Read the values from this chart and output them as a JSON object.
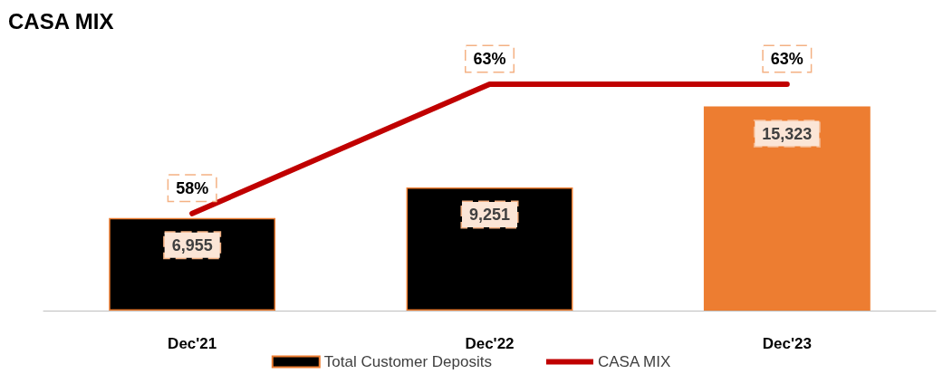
{
  "chart_data": {
    "type": "bar",
    "title": "CASA MIX",
    "categories": [
      "Dec'21",
      "Dec'22",
      "Dec'23"
    ],
    "series": [
      {
        "name": "Total Customer Deposits",
        "color": "#000000",
        "colors": [
          "#000000",
          "#000000",
          "#ed7d31"
        ],
        "values": [
          6955,
          9251,
          15323
        ],
        "value_labels": [
          "6,955",
          "9,251",
          "15,323"
        ]
      },
      {
        "name": "CASA MIX",
        "type": "line",
        "axis": "y2",
        "color": "#c00000",
        "values": [
          58,
          63,
          63
        ],
        "value_labels": [
          "58%",
          "63%",
          "63%"
        ]
      }
    ],
    "legend": "bottom",
    "tick_labels": "x",
    "marker": "none",
    "line_style": "solid"
  }
}
